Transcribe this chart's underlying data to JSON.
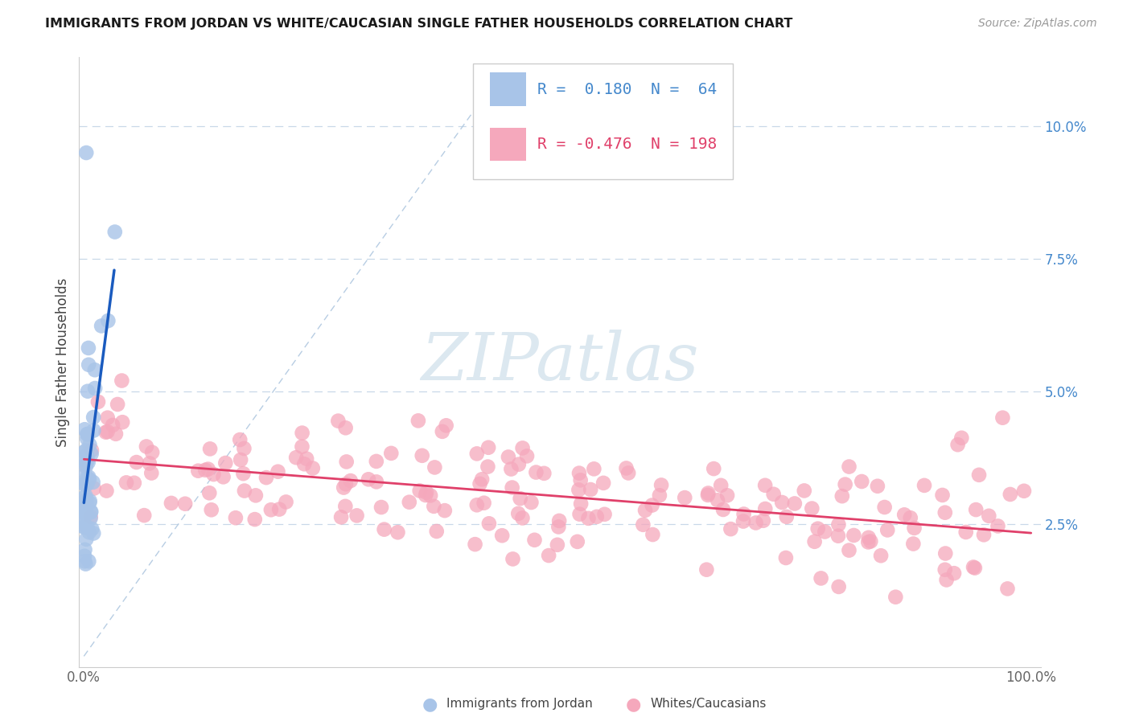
{
  "title": "IMMIGRANTS FROM JORDAN VS WHITE/CAUCASIAN SINGLE FATHER HOUSEHOLDS CORRELATION CHART",
  "source": "Source: ZipAtlas.com",
  "ylabel": "Single Father Households",
  "blue_color": "#a8c4e8",
  "pink_color": "#f5a8bc",
  "blue_line_color": "#1a5bbf",
  "pink_line_color": "#e0406a",
  "diag_color": "#b0c8e0",
  "grid_color": "#c8d8e8",
  "watermark_color": "#dce8f0",
  "ytick_color": "#4488cc",
  "xtick_color": "#666666",
  "r_blue": "R =  0.180  N =  64",
  "r_pink": "R = -0.476  N = 198",
  "legend_label_blue": "Immigrants from Jordan",
  "legend_label_pink": "Whites/Caucasians"
}
